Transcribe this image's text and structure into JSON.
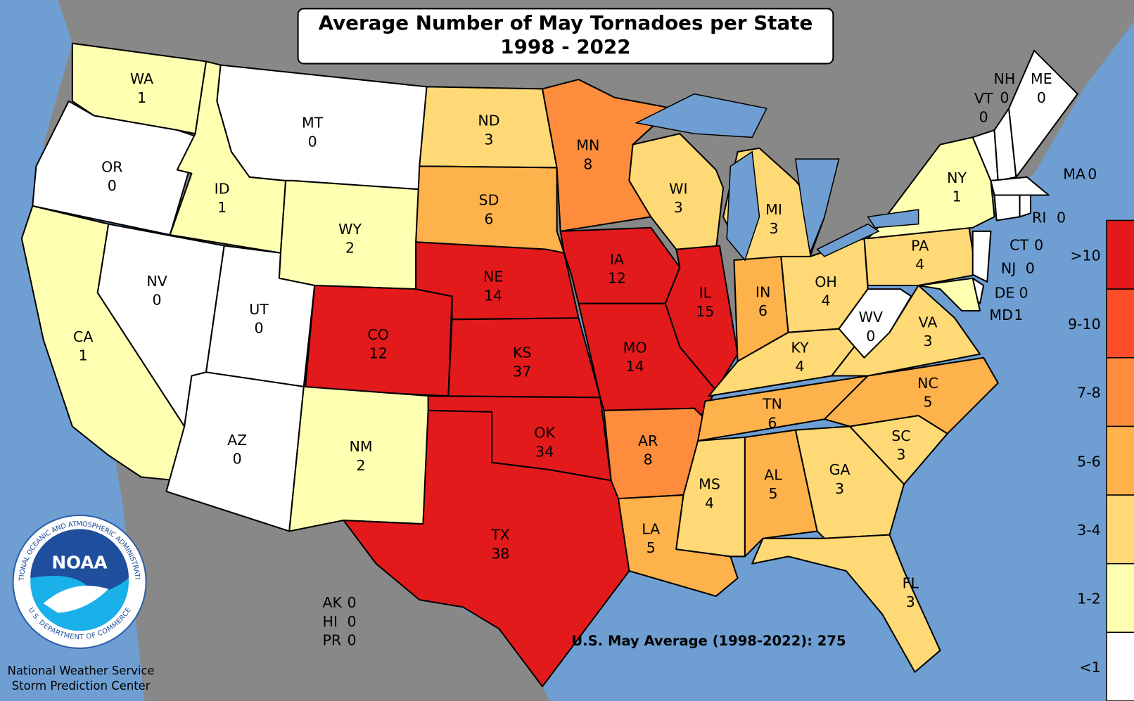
{
  "title": [
    "Average Number of May Tornadoes per State",
    "1998 - 2022"
  ],
  "states": [
    {
      "abbr": "WA",
      "value": 1,
      "color": "#ffffb2"
    },
    {
      "abbr": "OR",
      "value": 0,
      "color": "#ffffff"
    },
    {
      "abbr": "CA",
      "value": 1,
      "color": "#ffffb2"
    },
    {
      "abbr": "ID",
      "value": 1,
      "color": "#ffffb2"
    },
    {
      "abbr": "NV",
      "value": 0,
      "color": "#ffffff"
    },
    {
      "abbr": "MT",
      "value": 0,
      "color": "#ffffff"
    },
    {
      "abbr": "WY",
      "value": 2,
      "color": "#ffffb2"
    },
    {
      "abbr": "UT",
      "value": 0,
      "color": "#ffffff"
    },
    {
      "abbr": "CO",
      "value": 12,
      "color": "#e31a1c"
    },
    {
      "abbr": "AZ",
      "value": 0,
      "color": "#ffffff"
    },
    {
      "abbr": "NM",
      "value": 2,
      "color": "#ffffb2"
    },
    {
      "abbr": "ND",
      "value": 3,
      "color": "#fed976"
    },
    {
      "abbr": "SD",
      "value": 6,
      "color": "#feb24c"
    },
    {
      "abbr": "NE",
      "value": 14,
      "color": "#e31a1c"
    },
    {
      "abbr": "KS",
      "value": 37,
      "color": "#e31a1c"
    },
    {
      "abbr": "OK",
      "value": 34,
      "color": "#e31a1c"
    },
    {
      "abbr": "TX",
      "value": 38,
      "color": "#e31a1c"
    },
    {
      "abbr": "MN",
      "value": 8,
      "color": "#fd8d3c"
    },
    {
      "abbr": "IA",
      "value": 12,
      "color": "#e31a1c"
    },
    {
      "abbr": "MO",
      "value": 14,
      "color": "#e31a1c"
    },
    {
      "abbr": "AR",
      "value": 8,
      "color": "#fd8d3c"
    },
    {
      "abbr": "LA",
      "value": 5,
      "color": "#feb24c"
    },
    {
      "abbr": "WI",
      "value": 3,
      "color": "#fed976"
    },
    {
      "abbr": "IL",
      "value": 15,
      "color": "#e31a1c"
    },
    {
      "abbr": "MI",
      "value": 3,
      "color": "#fed976"
    },
    {
      "abbr": "IN",
      "value": 6,
      "color": "#feb24c"
    },
    {
      "abbr": "OH",
      "value": 4,
      "color": "#fed976"
    },
    {
      "abbr": "KY",
      "value": 4,
      "color": "#fed976"
    },
    {
      "abbr": "TN",
      "value": 6,
      "color": "#feb24c"
    },
    {
      "abbr": "MS",
      "value": 4,
      "color": "#fed976"
    },
    {
      "abbr": "AL",
      "value": 5,
      "color": "#feb24c"
    },
    {
      "abbr": "GA",
      "value": 3,
      "color": "#fed976"
    },
    {
      "abbr": "FL",
      "value": 3,
      "color": "#fed976"
    },
    {
      "abbr": "SC",
      "value": 3,
      "color": "#fed976"
    },
    {
      "abbr": "NC",
      "value": 5,
      "color": "#feb24c"
    },
    {
      "abbr": "VA",
      "value": 3,
      "color": "#fed976"
    },
    {
      "abbr": "WV",
      "value": 0,
      "color": "#ffffff"
    },
    {
      "abbr": "PA",
      "value": 4,
      "color": "#fed976"
    },
    {
      "abbr": "NY",
      "value": 1,
      "color": "#ffffb2"
    },
    {
      "abbr": "VT",
      "value": 0,
      "color": "#ffffff"
    },
    {
      "abbr": "NH",
      "value": 0,
      "color": "#ffffff"
    },
    {
      "abbr": "ME",
      "value": 0,
      "color": "#ffffff"
    },
    {
      "abbr": "MA",
      "value": 0,
      "color": "#ffffff"
    },
    {
      "abbr": "CT",
      "value": 0,
      "color": "#ffffff"
    },
    {
      "abbr": "RI",
      "value": 0,
      "color": "#ffffff"
    },
    {
      "abbr": "NJ",
      "value": 0,
      "color": "#ffffff"
    },
    {
      "abbr": "DE",
      "value": 0,
      "color": "#ffffff"
    },
    {
      "abbr": "MD",
      "value": 1,
      "color": "#ffffb2"
    }
  ],
  "territories": [
    {
      "abbr": "AK",
      "value": 0
    },
    {
      "abbr": "HI",
      "value": 0
    },
    {
      "abbr": "PR",
      "value": 0
    }
  ],
  "legend": [
    {
      "label": ">10",
      "color": "#e31a1c"
    },
    {
      "label": "9-10",
      "color": "#fc4e2a"
    },
    {
      "label": "7-8",
      "color": "#fd8d3c"
    },
    {
      "label": "5-6",
      "color": "#feb24c"
    },
    {
      "label": "3-4",
      "color": "#fed976"
    },
    {
      "label": "1-2",
      "color": "#ffffb2"
    },
    {
      "label": "<1",
      "color": "#ffffff"
    }
  ],
  "national_average": "U.S. May Average (1998-2022): 275",
  "logo": {
    "name": "NOAA",
    "ring_top": "NATIONAL OCEANIC AND ATMOSPHERIC ADMINISTRATION",
    "ring_bottom": "U.S. DEPARTMENT OF COMMERCE"
  },
  "credits": [
    "National Weather Service",
    "Storm Prediction Center"
  ]
}
